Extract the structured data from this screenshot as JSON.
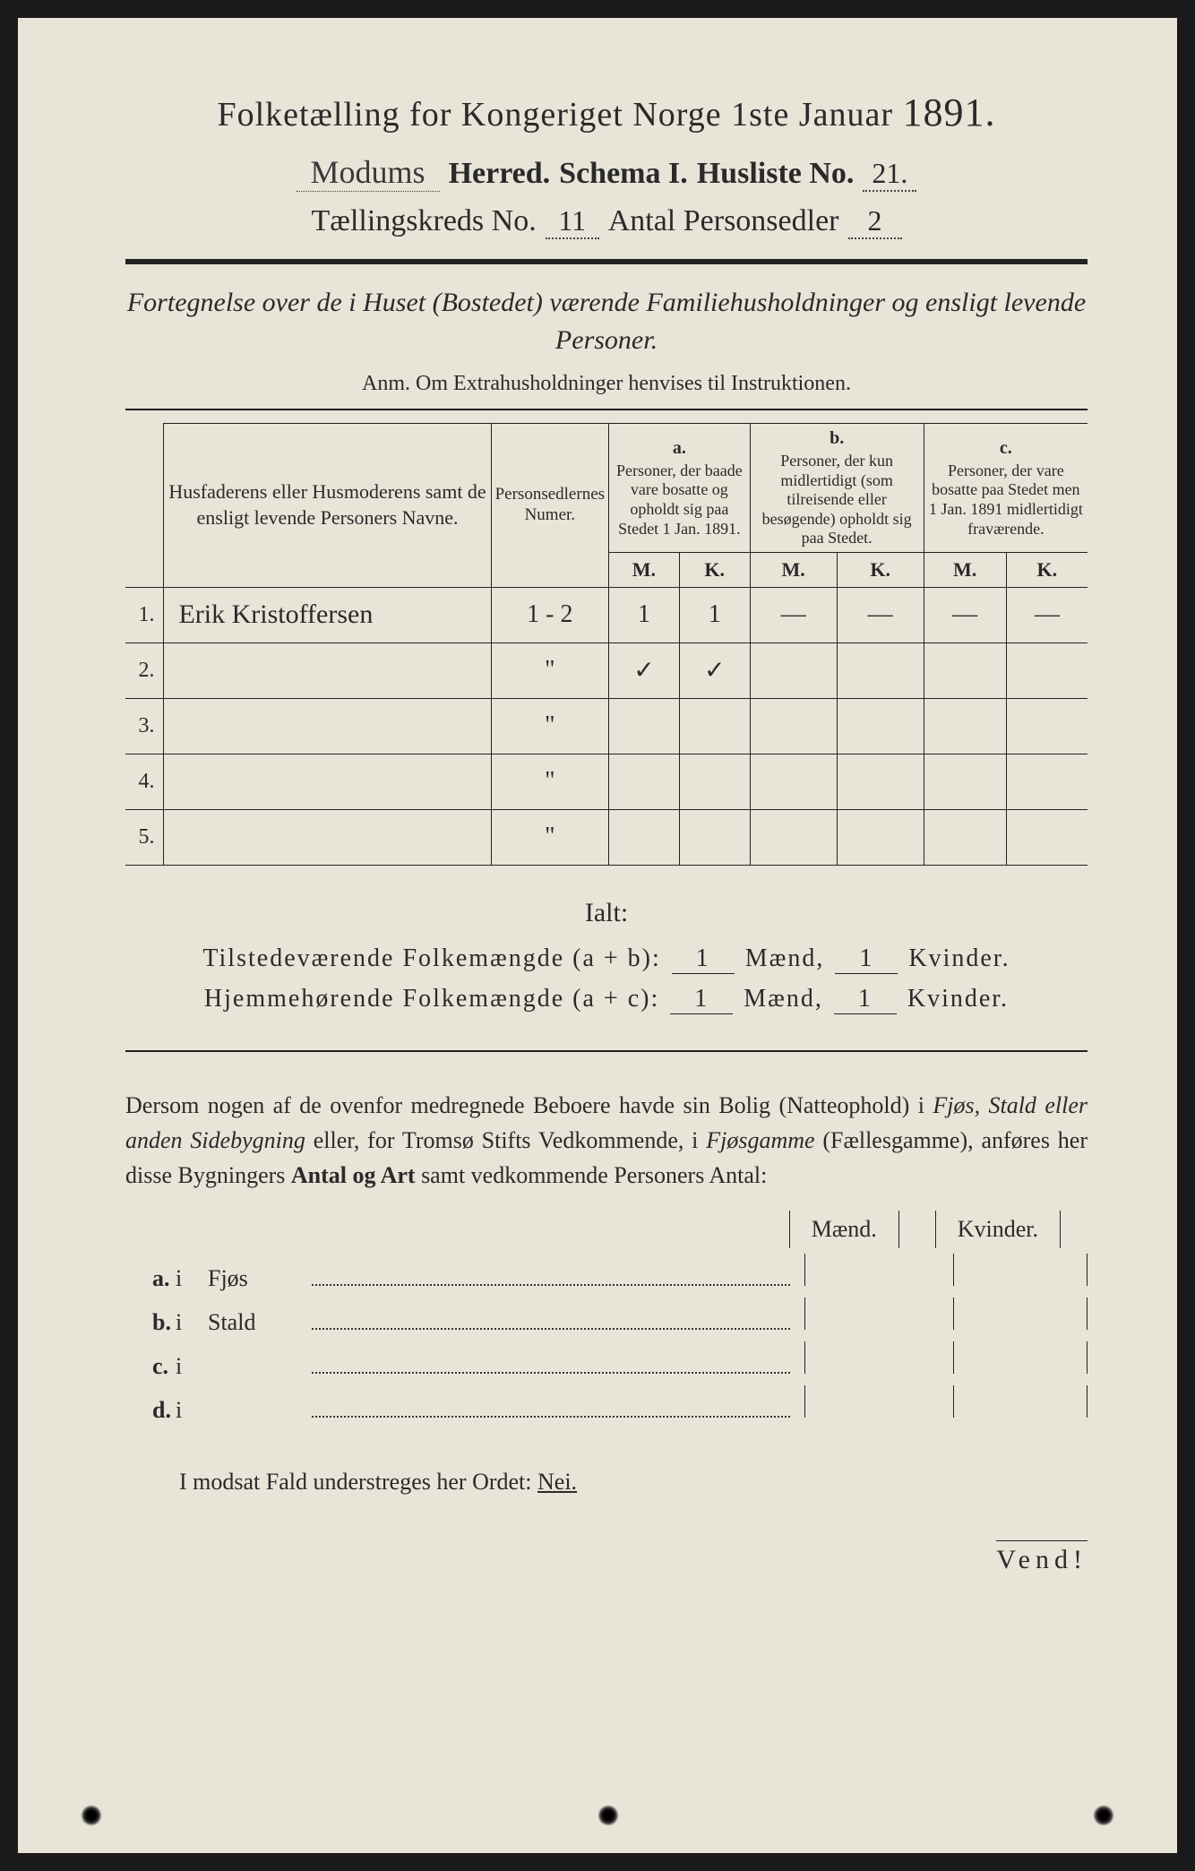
{
  "colors": {
    "paper": "#e8e4d8",
    "ink": "#2a2a2a",
    "border": "#222222",
    "background": "#1a1a1a"
  },
  "title": {
    "line1_prefix": "Folketælling for Kongeriget Norge 1ste Januar",
    "year": "1891.",
    "herred_value": "Modums",
    "herred_label": "Herred.",
    "schema_label": "Schema I.",
    "husliste_label": "Husliste No.",
    "husliste_value": "21.",
    "kreds_label": "Tællingskreds No.",
    "kreds_value": "11",
    "antal_label": "Antal Personsedler",
    "antal_value": "2"
  },
  "subtitle": "Fortegnelse over de i Huset (Bostedet) værende Familiehusholdninger og ensligt levende Personer.",
  "anm": "Anm. Om Extrahusholdninger henvises til Instruktionen.",
  "table": {
    "headers": {
      "names": "Husfaderens eller Husmoderens samt de ensligt levende Personers Navne.",
      "numer": "Personsedlernes Numer.",
      "col_a_label": "a.",
      "col_a": "Personer, der baade vare bosatte og opholdt sig paa Stedet 1 Jan. 1891.",
      "col_b_label": "b.",
      "col_b": "Personer, der kun midlertidigt (som tilreisende eller besøgende) opholdt sig paa Stedet.",
      "col_c_label": "c.",
      "col_c": "Personer, der vare bosatte paa Stedet men 1 Jan. 1891 midlertidigt fraværende.",
      "m": "M.",
      "k": "K."
    },
    "rows": [
      {
        "num": "1.",
        "name": "Erik Kristoffersen",
        "numer": "1 - 2",
        "a_m": "1",
        "a_k": "1",
        "b_m": "—",
        "b_k": "—",
        "c_m": "—",
        "c_k": "—"
      },
      {
        "num": "2.",
        "name": "",
        "numer": "\"",
        "a_m": "✓",
        "a_k": "✓",
        "b_m": "",
        "b_k": "",
        "c_m": "",
        "c_k": ""
      },
      {
        "num": "3.",
        "name": "",
        "numer": "\"",
        "a_m": "",
        "a_k": "",
        "b_m": "",
        "b_k": "",
        "c_m": "",
        "c_k": ""
      },
      {
        "num": "4.",
        "name": "",
        "numer": "\"",
        "a_m": "",
        "a_k": "",
        "b_m": "",
        "b_k": "",
        "c_m": "",
        "c_k": ""
      },
      {
        "num": "5.",
        "name": "",
        "numer": "\"",
        "a_m": "",
        "a_k": "",
        "b_m": "",
        "b_k": "",
        "c_m": "",
        "c_k": ""
      }
    ]
  },
  "ialt": {
    "title": "Ialt:",
    "row1_label": "Tilstedeværende Folkemængde (a + b):",
    "row2_label": "Hjemmehørende Folkemængde (a + c):",
    "maend": "Mænd,",
    "kvinder": "Kvinder.",
    "r1_m": "1",
    "r1_k": "1",
    "r2_m": "1",
    "r2_k": "1"
  },
  "para": {
    "text1": "Dersom nogen af de ovenfor medregnede Beboere havde sin Bolig (Natteophold) i ",
    "em1": "Fjøs, Stald eller anden Sidebygning",
    "text2": " eller, for Tromsø Stifts Vedkommende, i ",
    "em2": "Fjøsgamme",
    "text3": " (Fællesgamme), anføres her disse Bygningers ",
    "bold1": "Antal og Art",
    "text4": " samt vedkommende Personers Antal:"
  },
  "bygning": {
    "maend": "Mænd.",
    "kvinder": "Kvinder.",
    "rows": [
      {
        "letter": "a.",
        "label": "Fjøs"
      },
      {
        "letter": "b.",
        "label": "Stald"
      },
      {
        "letter": "c.",
        "label": ""
      },
      {
        "letter": "d.",
        "label": ""
      }
    ],
    "i": "i"
  },
  "nei": {
    "prefix": "I modsat Fald understreges her Ordet: ",
    "word": "Nei."
  },
  "vend": "Vend!"
}
